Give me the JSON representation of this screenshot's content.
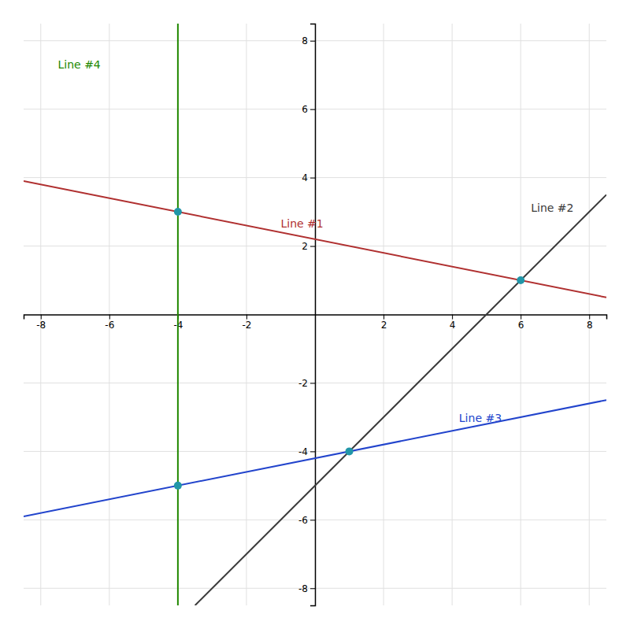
{
  "chart_data": {
    "type": "line",
    "xlim": [
      -8.5,
      8.5
    ],
    "ylim": [
      -8.5,
      8.5
    ],
    "xticks": [
      -8,
      -6,
      -4,
      -2,
      2,
      4,
      6,
      8
    ],
    "yticks": [
      -8,
      -6,
      -4,
      -2,
      2,
      4,
      6,
      8
    ],
    "grid": true,
    "series": [
      {
        "type": "line",
        "color": "#b03030",
        "x": [
          -8.5,
          8.5
        ],
        "values": [
          3.9,
          0.5
        ]
      },
      {
        "type": "line",
        "color": "#3a3a3a",
        "x": [
          8.5,
          -3.5
        ],
        "values": [
          3.5,
          -8.5
        ]
      },
      {
        "type": "line",
        "color": "#2244cc",
        "x": [
          -8.5,
          8.5
        ],
        "values": [
          -5.9,
          -2.5
        ]
      },
      {
        "type": "line",
        "color": "#228800",
        "x": [
          -4,
          -4
        ],
        "values": [
          -8.5,
          8.5
        ]
      },
      {
        "type": "scatter",
        "color": "#2196a8",
        "x": [
          -4,
          6,
          1,
          -4
        ],
        "values": [
          3,
          1,
          -4,
          -5
        ]
      }
    ],
    "annotations": [
      {
        "text": "Line #1",
        "x": -1.0,
        "y": 2.55,
        "color": "#b03030"
      },
      {
        "text": "Line #2",
        "x": 6.3,
        "y": 3.0,
        "color": "#3a3a3a"
      },
      {
        "text": "Line #3",
        "x": 4.2,
        "y": -3.15,
        "color": "#2244cc"
      },
      {
        "text": "Line #4",
        "x": -7.5,
        "y": 7.2,
        "color": "#228800"
      }
    ]
  }
}
